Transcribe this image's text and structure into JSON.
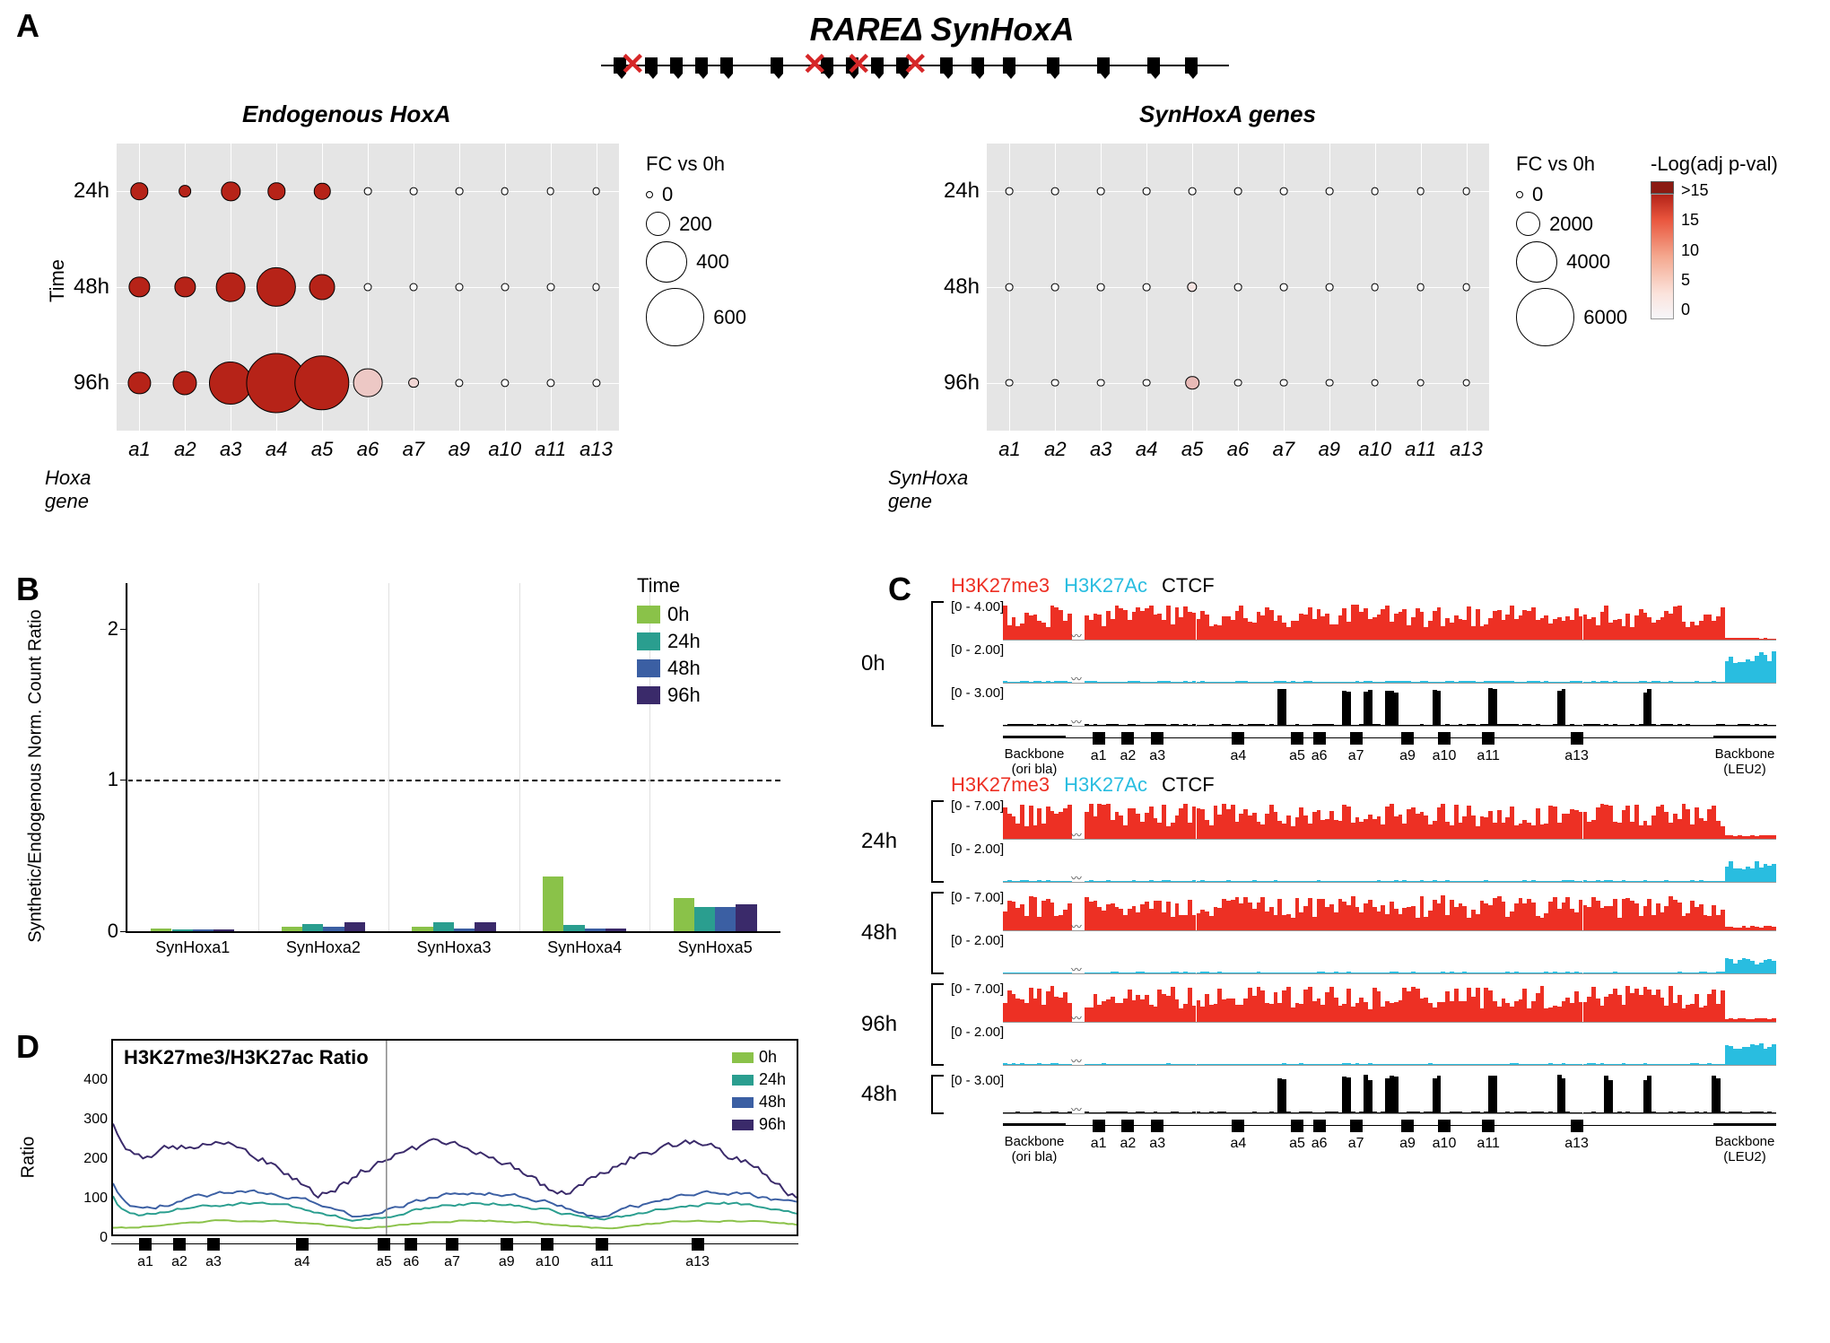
{
  "figure": {
    "title": "RAREΔ SynHoxA",
    "panel_letters": [
      "A",
      "B",
      "C",
      "D"
    ]
  },
  "colors": {
    "red": "#ed3024",
    "cyan": "#29bde0",
    "black": "#000000",
    "time_palette": {
      "0h": "#8ac249",
      "24h": "#2a9e8f",
      "48h": "#3b5fa3",
      "96h": "#3a2a6a"
    },
    "heat_low": "#f6f6fa",
    "heat_mid": "#f2a88e",
    "heat_high": "#b62318"
  },
  "panelA": {
    "left_title": "Endogenous HoxA",
    "right_title": "SynHoxA genes",
    "y_axis_title": "Time",
    "left_x_axis_title": "Hoxa gene",
    "right_x_axis_title": "SynHoxa gene",
    "time_points": [
      "24h",
      "48h",
      "96h"
    ],
    "genes": [
      "a1",
      "a2",
      "a3",
      "a4",
      "a5",
      "a6",
      "a7",
      "a9",
      "a10",
      "a11",
      "a13"
    ],
    "fc_legend_label": "FC vs 0h",
    "pval_legend_label": "-Log(adj p-val)",
    "fc_left_breaks": [
      0,
      200,
      400,
      600
    ],
    "fc_right_breaks": [
      0,
      2000,
      4000,
      6000
    ],
    "pval_breaks": [
      ">15",
      "15",
      "10",
      "5",
      "0"
    ],
    "left_fc": {
      "24h": [
        120,
        60,
        140,
        120,
        110,
        8,
        8,
        8,
        8,
        8,
        8
      ],
      "48h": [
        160,
        160,
        260,
        380,
        220,
        10,
        10,
        10,
        10,
        10,
        10
      ],
      "96h": [
        180,
        200,
        420,
        620,
        560,
        260,
        40,
        12,
        12,
        12,
        12
      ]
    },
    "left_pval": {
      "24h": [
        16,
        16,
        16,
        16,
        16,
        0,
        0,
        0,
        0,
        0,
        0
      ],
      "48h": [
        16,
        16,
        16,
        16,
        16,
        0,
        0,
        0,
        0,
        0,
        0
      ],
      "96h": [
        16,
        16,
        16,
        16,
        16,
        4,
        3,
        0,
        0,
        0,
        0
      ]
    },
    "right_fc": {
      "24h": [
        80,
        80,
        80,
        80,
        80,
        80,
        80,
        80,
        80,
        80,
        80
      ],
      "48h": [
        80,
        80,
        80,
        80,
        350,
        80,
        80,
        80,
        80,
        80,
        80
      ],
      "96h": [
        80,
        80,
        80,
        80,
        800,
        80,
        80,
        80,
        80,
        80,
        80
      ]
    },
    "right_pval": {
      "24h": [
        0,
        0,
        0,
        0,
        0,
        0,
        0,
        0,
        0,
        0,
        0
      ],
      "48h": [
        0,
        0,
        0,
        0,
        2,
        0,
        0,
        0,
        0,
        0,
        0
      ],
      "96h": [
        0,
        0,
        0,
        0,
        5,
        0,
        0,
        0,
        0,
        0,
        0
      ]
    },
    "red_x_positions_rel": [
      0.05,
      0.34,
      0.41,
      0.5
    ]
  },
  "panelB": {
    "y_title": "Synthetic/Endogenous Norm. Count Ratio",
    "ylim": [
      0,
      2.3
    ],
    "dash_y": 1.0,
    "yticks": [
      0,
      1,
      2
    ],
    "categories": [
      "SynHoxa1",
      "SynHoxa2",
      "SynHoxa3",
      "SynHoxa4",
      "SynHoxa5"
    ],
    "legend_title": "Time",
    "times": [
      "0h",
      "24h",
      "48h",
      "96h"
    ],
    "values": {
      "SynHoxa1": [
        0.02,
        0.01,
        0.01,
        0.01
      ],
      "SynHoxa2": [
        0.03,
        0.05,
        0.03,
        0.06
      ],
      "SynHoxa3": [
        0.03,
        0.06,
        0.02,
        0.06
      ],
      "SynHoxa4": [
        0.36,
        0.04,
        0.02,
        0.02
      ],
      "SynHoxa5": [
        0.22,
        0.16,
        0.16,
        0.18
      ]
    }
  },
  "panelC": {
    "header_labels": [
      "H3K27me3",
      "H3K27Ac",
      "CTCF"
    ],
    "header_colors": [
      "#ed3024",
      "#29bde0",
      "#000000"
    ],
    "gene_labels": [
      "a1",
      "a2",
      "a3",
      "a4",
      "a5",
      "a6",
      "a7",
      "a9",
      "a10",
      "a11",
      "a13"
    ],
    "backbone_left": "Backbone\n(ori bla)",
    "backbone_right": "Backbone\n(LEU2)",
    "blocks": [
      {
        "time": "0h",
        "tracks": [
          {
            "name": "H3K27me3",
            "range": "[0 - 4.00]",
            "color": "#ed3024",
            "density": 0.9,
            "spike_right": 0.05
          },
          {
            "name": "H3K27Ac",
            "range": "[0 - 2.00]",
            "color": "#29bde0",
            "density": 0.05,
            "spike_right": 0.85
          },
          {
            "name": "CTCF",
            "range": "[0 - 3.00]",
            "color": "#000000",
            "density": 0.0,
            "peaks": [
              0.36,
              0.44,
              0.47,
              0.5,
              0.56,
              0.63,
              0.72,
              0.83
            ]
          }
        ],
        "show_header": true,
        "show_axis": true
      },
      {
        "time": "24h",
        "tracks": [
          {
            "name": "H3K27me3",
            "range": "[0 - 7.00]",
            "color": "#ed3024",
            "density": 0.92,
            "spike_right": 0.1
          },
          {
            "name": "H3K27Ac",
            "range": "[0 - 2.00]",
            "color": "#29bde0",
            "density": 0.04,
            "spike_right": 0.55
          }
        ],
        "show_header": true,
        "show_axis": false
      },
      {
        "time": "48h",
        "tracks": [
          {
            "name": "H3K27me3",
            "range": "[0 - 7.00]",
            "color": "#ed3024",
            "density": 0.92,
            "spike_right": 0.12
          },
          {
            "name": "H3K27Ac",
            "range": "[0 - 2.00]",
            "color": "#29bde0",
            "density": 0.04,
            "spike_right": 0.4
          }
        ],
        "show_header": false,
        "show_axis": false
      },
      {
        "time": "96h",
        "tracks": [
          {
            "name": "H3K27me3",
            "range": "[0 - 7.00]",
            "color": "#ed3024",
            "density": 0.93,
            "spike_right": 0.1
          },
          {
            "name": "H3K27Ac",
            "range": "[0 - 2.00]",
            "color": "#29bde0",
            "density": 0.04,
            "spike_right": 0.6
          }
        ],
        "show_header": false,
        "show_axis": false
      },
      {
        "time": "48h",
        "tracks": [
          {
            "name": "CTCF",
            "range": "[0 - 3.00]",
            "color": "#000000",
            "density": 0.0,
            "peaks": [
              0.36,
              0.44,
              0.47,
              0.5,
              0.56,
              0.63,
              0.72,
              0.78,
              0.83,
              0.92
            ]
          }
        ],
        "show_header": false,
        "show_axis": true
      }
    ]
  },
  "panelD": {
    "title": "H3K27me3/H3K27ac Ratio",
    "y_label": "Ratio",
    "ylim": [
      0,
      500
    ],
    "yticks": [
      0,
      100,
      200,
      300,
      400
    ],
    "times": [
      "0h",
      "24h",
      "48h",
      "96h"
    ],
    "gene_labels": [
      "a1",
      "a2",
      "a3",
      "a4",
      "a5",
      "a6",
      "a7",
      "a9",
      "a10",
      "a11",
      "a13"
    ]
  }
}
